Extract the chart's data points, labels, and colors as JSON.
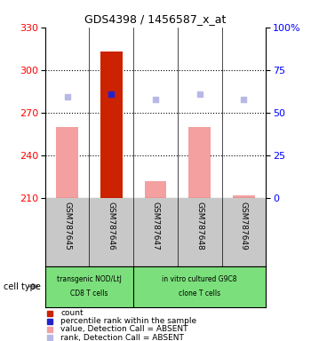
{
  "title": "GDS4398 / 1456587_x_at",
  "samples": [
    "GSM787645",
    "GSM787646",
    "GSM787647",
    "GSM787648",
    "GSM787649"
  ],
  "ylim": [
    210,
    330
  ],
  "yticks": [
    210,
    240,
    270,
    300,
    330
  ],
  "y2lim": [
    0,
    100
  ],
  "y2ticks": [
    0,
    25,
    50,
    75,
    100
  ],
  "y2ticklabels": [
    "0",
    "25",
    "50",
    "75",
    "100%"
  ],
  "bar_values": [
    260,
    313,
    222,
    260,
    212
  ],
  "bar_colors": [
    "#f4a0a0",
    "#cc2200",
    "#f4a0a0",
    "#f4a0a0",
    "#f4a0a0"
  ],
  "rank_values": [
    281,
    283,
    279,
    283,
    279
  ],
  "rank_colors": [
    "#b8b8e8",
    "#2222cc",
    "#b8b8e8",
    "#b8b8e8",
    "#b8b8e8"
  ],
  "bar_bottom": 210,
  "bar_width": 0.5,
  "group1_indices": [
    0,
    1
  ],
  "group2_indices": [
    2,
    3,
    4
  ],
  "group1_label1": "transgenic NOD/LtJ",
  "group1_label2": "CD8 T cells",
  "group2_label1": "in vitro cultured G9C8",
  "group2_label2": "clone T cells",
  "cell_type_label": "cell type",
  "legend_items": [
    {
      "label": "count",
      "color": "#cc2200"
    },
    {
      "label": "percentile rank within the sample",
      "color": "#2222cc"
    },
    {
      "label": "value, Detection Call = ABSENT",
      "color": "#f4a0a0"
    },
    {
      "label": "rank, Detection Call = ABSENT",
      "color": "#b8b8e8"
    }
  ],
  "plot_bg": "#ffffff",
  "sample_bg": "#c8c8c8",
  "group_bg": "#7be07b"
}
